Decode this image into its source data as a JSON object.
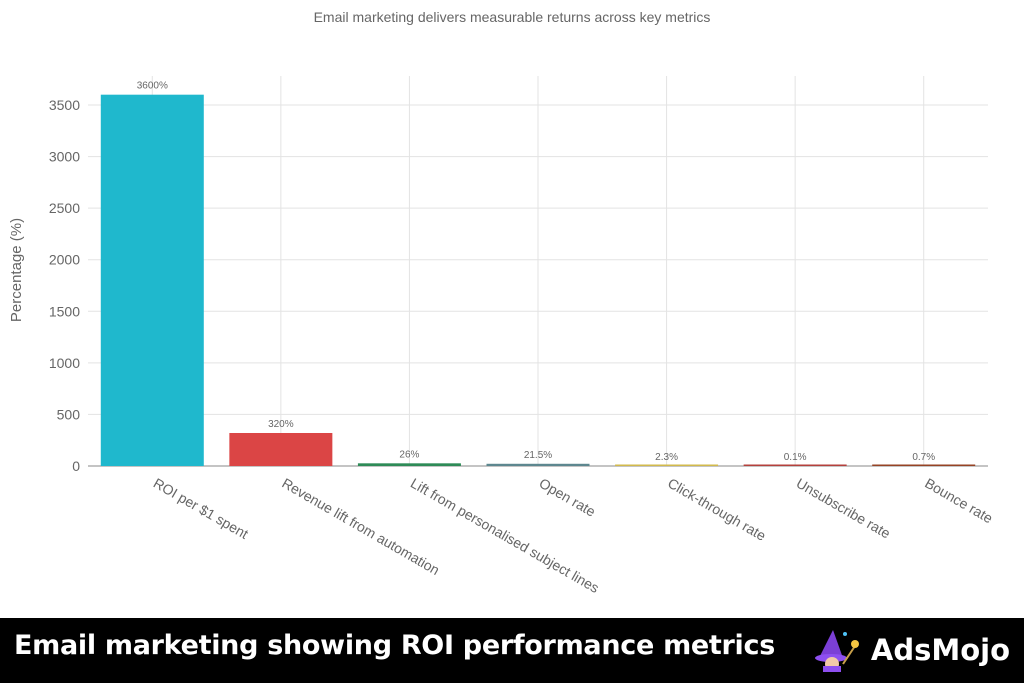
{
  "chart_data": {
    "type": "bar",
    "title": "Email marketing delivers measurable returns across key metrics",
    "xlabel": "",
    "ylabel": "Percentage (%)",
    "ylim": [
      0,
      3600
    ],
    "yticks": [
      0,
      500,
      1000,
      1500,
      2000,
      2500,
      3000,
      3500
    ],
    "grid": true,
    "categories": [
      "ROI per $1 spent",
      "Revenue lift from automation",
      "Lift from personalised subject lines",
      "Open rate",
      "Click-through rate",
      "Unsubscribe rate",
      "Bounce rate"
    ],
    "values": [
      3600,
      320,
      26,
      21.5,
      2.3,
      0.1,
      0.7
    ],
    "data_labels": [
      "3600%",
      "320%",
      "26%",
      "21.5%",
      "2.3%",
      "0.1%",
      "0.7%"
    ],
    "colors": [
      "#1FB8CD",
      "#DB4545",
      "#2E8B57",
      "#5D878F",
      "#D2BA4C",
      "#B4413C",
      "#964325"
    ]
  },
  "footer": {
    "caption": "Email marketing showing ROI performance metrics",
    "brand": "AdsMojo"
  }
}
